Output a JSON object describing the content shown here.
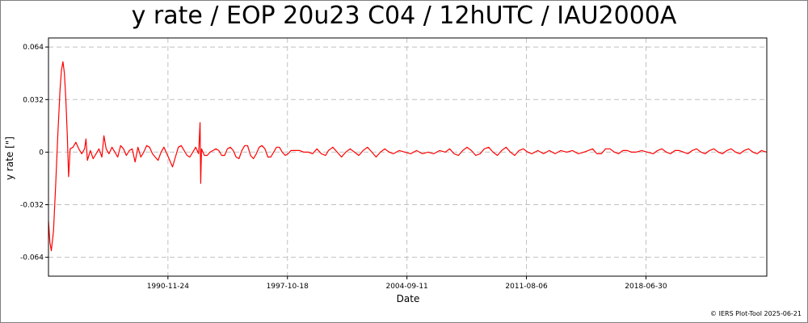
{
  "chart_data": {
    "type": "line",
    "title": "y rate / EOP 20u23 C04 / 12hUTC / IAU2000A",
    "xlabel": "Date",
    "ylabel": "y rate [\"]",
    "x_range": [
      "1984-01-01",
      "2025-06-21"
    ],
    "ylim": [
      -0.0755,
      0.0695
    ],
    "y_ticks": [
      {
        "value": 0.064,
        "label": "0.064"
      },
      {
        "value": 0.032,
        "label": "0.032"
      },
      {
        "value": 0,
        "label": "0"
      },
      {
        "value": -0.032,
        "label": "-0.032"
      },
      {
        "value": -0.064,
        "label": "-0.064"
      }
    ],
    "x_ticks": [
      {
        "value": "1990-11-24",
        "label": "1990-11-24"
      },
      {
        "value": "1997-10-18",
        "label": "1997-10-18"
      },
      {
        "value": "2004-09-11",
        "label": "2004-09-11"
      },
      {
        "value": "2011-08-06",
        "label": "2011-08-06"
      },
      {
        "value": "2018-06-30",
        "label": "2018-06-30"
      }
    ],
    "grid": true,
    "series": [
      {
        "color": "#ff0000",
        "points": [
          [
            "1984-01-01",
            -0.042
          ],
          [
            "1984-02-01",
            -0.055
          ],
          [
            "1984-03-01",
            -0.06
          ],
          [
            "1984-04-15",
            -0.048
          ],
          [
            "1984-06-01",
            -0.02
          ],
          [
            "1984-07-15",
            0.01
          ],
          [
            "1984-09-01",
            0.038
          ],
          [
            "1984-10-01",
            0.05
          ],
          [
            "1984-11-01",
            0.055
          ],
          [
            "1984-12-01",
            0.048
          ],
          [
            "1985-01-01",
            0.032
          ],
          [
            "1985-02-01",
            0.01
          ],
          [
            "1985-03-01",
            -0.015
          ],
          [
            "1985-04-01",
            0.002
          ],
          [
            "1985-06-01",
            0.003
          ],
          [
            "1985-08-01",
            0.006
          ],
          [
            "1985-10-01",
            0.002
          ],
          [
            "1985-12-01",
            -0.001
          ],
          [
            "1986-02-01",
            0.002
          ],
          [
            "1986-03-01",
            0.008
          ],
          [
            "1986-04-01",
            -0.005
          ],
          [
            "1986-06-01",
            0.001
          ],
          [
            "1986-08-01",
            -0.004
          ],
          [
            "1986-10-01",
            -0.001
          ],
          [
            "1986-12-01",
            0.002
          ],
          [
            "1987-02-01",
            -0.003
          ],
          [
            "1987-03-15",
            0.01
          ],
          [
            "1987-05-01",
            0.002
          ],
          [
            "1987-07-01",
            -0.001
          ],
          [
            "1987-09-01",
            0.003
          ],
          [
            "1987-11-01",
            0.0
          ],
          [
            "1988-01-01",
            -0.003
          ],
          [
            "1988-03-01",
            0.004
          ],
          [
            "1988-05-01",
            0.002
          ],
          [
            "1988-07-01",
            -0.002
          ],
          [
            "1988-09-01",
            0.001
          ],
          [
            "1988-11-01",
            0.002
          ],
          [
            "1989-01-01",
            -0.006
          ],
          [
            "1989-03-01",
            0.003
          ],
          [
            "1989-05-01",
            -0.003
          ],
          [
            "1989-07-01",
            0.0
          ],
          [
            "1989-09-01",
            0.004
          ],
          [
            "1989-11-01",
            0.003
          ],
          [
            "1990-01-01",
            -0.001
          ],
          [
            "1990-03-01",
            -0.003
          ],
          [
            "1990-05-01",
            -0.005
          ],
          [
            "1990-07-01",
            0.0
          ],
          [
            "1990-09-01",
            0.003
          ],
          [
            "1990-11-01",
            -0.001
          ],
          [
            "1991-01-01",
            -0.005
          ],
          [
            "1991-03-01",
            -0.009
          ],
          [
            "1991-05-01",
            -0.003
          ],
          [
            "1991-07-01",
            0.003
          ],
          [
            "1991-09-01",
            0.004
          ],
          [
            "1991-11-01",
            0.001
          ],
          [
            "1992-01-01",
            -0.002
          ],
          [
            "1992-03-01",
            -0.003
          ],
          [
            "1992-05-01",
            0.0
          ],
          [
            "1992-07-01",
            0.003
          ],
          [
            "1992-09-01",
            -0.001
          ],
          [
            "1992-10-01",
            0.018
          ],
          [
            "1992-10-15",
            -0.019
          ],
          [
            "1992-11-01",
            0.002
          ],
          [
            "1993-01-01",
            -0.002
          ],
          [
            "1993-03-01",
            -0.002
          ],
          [
            "1993-05-01",
            0.0
          ],
          [
            "1993-07-01",
            0.001
          ],
          [
            "1993-09-01",
            0.002
          ],
          [
            "1993-11-01",
            0.001
          ],
          [
            "1994-01-01",
            -0.002
          ],
          [
            "1994-03-01",
            -0.002
          ],
          [
            "1994-05-01",
            0.002
          ],
          [
            "1994-07-01",
            0.003
          ],
          [
            "1994-09-01",
            0.001
          ],
          [
            "1994-11-01",
            -0.003
          ],
          [
            "1995-01-01",
            -0.004
          ],
          [
            "1995-03-01",
            0.001
          ],
          [
            "1995-05-01",
            0.004
          ],
          [
            "1995-07-01",
            0.004
          ],
          [
            "1995-09-01",
            -0.002
          ],
          [
            "1995-11-01",
            -0.004
          ],
          [
            "1996-01-01",
            -0.001
          ],
          [
            "1996-03-01",
            0.003
          ],
          [
            "1996-05-01",
            0.004
          ],
          [
            "1996-07-01",
            0.002
          ],
          [
            "1996-09-01",
            -0.003
          ],
          [
            "1996-11-01",
            -0.003
          ],
          [
            "1997-01-01",
            0.0
          ],
          [
            "1997-03-01",
            0.003
          ],
          [
            "1997-05-01",
            0.003
          ],
          [
            "1997-07-01",
            0.0
          ],
          [
            "1997-09-01",
            -0.002
          ],
          [
            "1997-11-01",
            -0.001
          ],
          [
            "1998-01-01",
            0.001
          ],
          [
            "1998-04-01",
            0.001
          ],
          [
            "1998-07-01",
            0.001
          ],
          [
            "1998-10-01",
            0.0
          ],
          [
            "1999-01-01",
            0.0
          ],
          [
            "1999-04-01",
            -0.001
          ],
          [
            "1999-07-01",
            0.002
          ],
          [
            "1999-10-01",
            -0.001
          ],
          [
            "2000-01-01",
            -0.002
          ],
          [
            "2000-03-01",
            0.001
          ],
          [
            "2000-06-01",
            0.003
          ],
          [
            "2000-09-01",
            0.0
          ],
          [
            "2000-12-01",
            -0.003
          ],
          [
            "2001-03-01",
            0.0
          ],
          [
            "2001-06-01",
            0.002
          ],
          [
            "2001-09-01",
            0.0
          ],
          [
            "2001-12-01",
            -0.002
          ],
          [
            "2002-03-01",
            0.001
          ],
          [
            "2002-06-01",
            0.003
          ],
          [
            "2002-09-01",
            0.0
          ],
          [
            "2002-12-01",
            -0.003
          ],
          [
            "2003-03-01",
            0.0
          ],
          [
            "2003-06-01",
            0.002
          ],
          [
            "2003-09-01",
            0.0
          ],
          [
            "2003-12-01",
            -0.001
          ],
          [
            "2004-04-01",
            0.001
          ],
          [
            "2004-08-01",
            0.0
          ],
          [
            "2004-12-01",
            -0.001
          ],
          [
            "2005-04-01",
            0.001
          ],
          [
            "2005-08-01",
            -0.001
          ],
          [
            "2005-12-01",
            0.0
          ],
          [
            "2006-04-01",
            -0.001
          ],
          [
            "2006-08-01",
            0.001
          ],
          [
            "2006-12-01",
            0.0
          ],
          [
            "2007-03-01",
            0.002
          ],
          [
            "2007-06-01",
            -0.001
          ],
          [
            "2007-09-01",
            -0.002
          ],
          [
            "2007-12-01",
            0.001
          ],
          [
            "2008-03-01",
            0.003
          ],
          [
            "2008-06-01",
            0.001
          ],
          [
            "2008-09-01",
            -0.002
          ],
          [
            "2008-12-01",
            -0.001
          ],
          [
            "2009-03-01",
            0.002
          ],
          [
            "2009-06-01",
            0.003
          ],
          [
            "2009-09-01",
            0.0
          ],
          [
            "2009-12-01",
            -0.002
          ],
          [
            "2010-03-01",
            0.001
          ],
          [
            "2010-06-01",
            0.003
          ],
          [
            "2010-09-01",
            0.0
          ],
          [
            "2010-12-01",
            -0.002
          ],
          [
            "2011-03-01",
            0.001
          ],
          [
            "2011-06-01",
            0.002
          ],
          [
            "2011-09-01",
            0.0
          ],
          [
            "2011-12-01",
            -0.001
          ],
          [
            "2012-04-01",
            0.001
          ],
          [
            "2012-08-01",
            -0.001
          ],
          [
            "2012-12-01",
            0.001
          ],
          [
            "2013-04-01",
            -0.001
          ],
          [
            "2013-08-01",
            0.001
          ],
          [
            "2013-12-01",
            0.0
          ],
          [
            "2014-04-01",
            0.001
          ],
          [
            "2014-08-01",
            -0.001
          ],
          [
            "2014-12-01",
            0.0
          ],
          [
            "2015-03-01",
            0.001
          ],
          [
            "2015-06-01",
            0.002
          ],
          [
            "2015-09-01",
            -0.001
          ],
          [
            "2015-12-01",
            -0.001
          ],
          [
            "2016-03-01",
            0.002
          ],
          [
            "2016-06-01",
            0.002
          ],
          [
            "2016-09-01",
            0.0
          ],
          [
            "2016-12-01",
            -0.001
          ],
          [
            "2017-03-01",
            0.001
          ],
          [
            "2017-06-01",
            0.001
          ],
          [
            "2017-09-01",
            0.0
          ],
          [
            "2017-12-01",
            0.0
          ],
          [
            "2018-04-01",
            0.001
          ],
          [
            "2018-08-01",
            0.0
          ],
          [
            "2018-12-01",
            -0.001
          ],
          [
            "2019-03-01",
            0.001
          ],
          [
            "2019-06-01",
            0.002
          ],
          [
            "2019-09-01",
            0.0
          ],
          [
            "2019-12-01",
            -0.001
          ],
          [
            "2020-03-01",
            0.001
          ],
          [
            "2020-06-01",
            0.001
          ],
          [
            "2020-09-01",
            0.0
          ],
          [
            "2020-12-01",
            -0.001
          ],
          [
            "2021-03-01",
            0.001
          ],
          [
            "2021-06-01",
            0.002
          ],
          [
            "2021-09-01",
            0.0
          ],
          [
            "2021-12-01",
            -0.001
          ],
          [
            "2022-03-01",
            0.001
          ],
          [
            "2022-06-01",
            0.002
          ],
          [
            "2022-09-01",
            0.0
          ],
          [
            "2022-12-01",
            -0.001
          ],
          [
            "2023-03-01",
            0.001
          ],
          [
            "2023-06-01",
            0.002
          ],
          [
            "2023-09-01",
            0.0
          ],
          [
            "2023-12-01",
            -0.001
          ],
          [
            "2024-03-01",
            0.001
          ],
          [
            "2024-06-01",
            0.002
          ],
          [
            "2024-09-01",
            0.0
          ],
          [
            "2024-12-01",
            -0.001
          ],
          [
            "2025-03-01",
            0.001
          ],
          [
            "2025-06-21",
            0.0
          ]
        ]
      }
    ]
  },
  "footer": "© IERS Plot-Tool 2025-06-21",
  "colors": {
    "series": "#ff0000",
    "grid": "#c0c0c0",
    "axis": "#000000",
    "frame": "#7f7f7f"
  }
}
